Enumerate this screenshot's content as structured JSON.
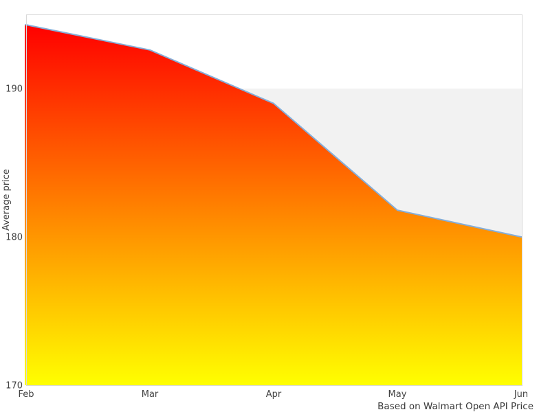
{
  "chart_data": {
    "type": "area",
    "categories": [
      "Feb",
      "Mar",
      "Apr",
      "May",
      "Jun"
    ],
    "series": [
      {
        "name": "Average price",
        "values": [
          194.3,
          192.6,
          189.0,
          181.8,
          180.0
        ]
      }
    ],
    "title": "",
    "xlabel": "",
    "ylabel": "Average price",
    "yticks": [
      170,
      180,
      190
    ],
    "ylim": [
      170,
      195
    ],
    "shaded_band": {
      "from": 180,
      "to": 190
    },
    "legend": "none",
    "grid": "off",
    "caption": "Based on Walmart Open API Price"
  },
  "colors": {
    "area_gradient_top": "#ff0000",
    "area_gradient_bottom": "#ffff00",
    "series_line": "#85aed9",
    "band_fill": "#f2f2f2",
    "plot_border": "#d9d9d9",
    "plot_background": "#ffffff",
    "tick_text": "#424242",
    "caption_text": "#383838"
  }
}
